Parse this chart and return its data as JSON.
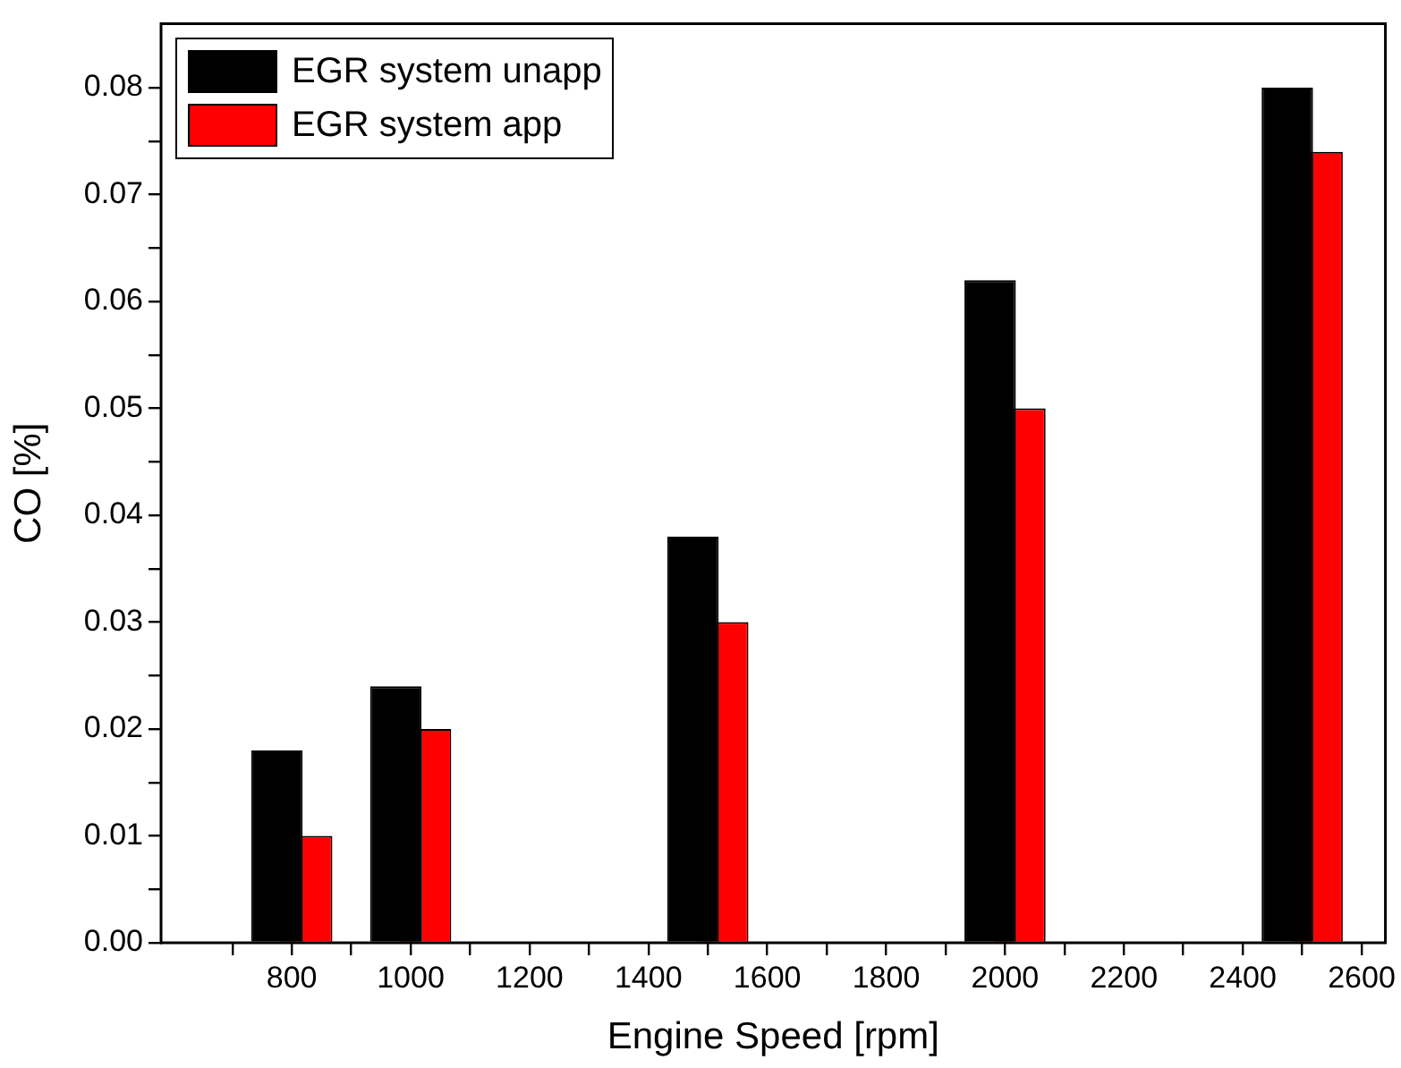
{
  "chart_data": {
    "type": "bar",
    "xlabel": "Engine Speed [rpm]",
    "ylabel": "CO [%]",
    "x": [
      800,
      1000,
      1500,
      2000,
      2500
    ],
    "series": [
      {
        "name": "EGR system unapp",
        "color": "#000000",
        "values": [
          0.018,
          0.024,
          0.038,
          0.062,
          0.08
        ]
      },
      {
        "name": "EGR system app",
        "color": "#ff0000",
        "values": [
          0.01,
          0.02,
          0.03,
          0.05,
          0.074
        ]
      }
    ],
    "xlim": [
      580,
      2640
    ],
    "xticks": [
      {
        "value": 700,
        "label": null
      },
      800,
      {
        "value": 900,
        "label": null
      },
      1000,
      {
        "value": 1100,
        "label": null
      },
      1200,
      {
        "value": 1300,
        "label": null
      },
      1400,
      {
        "value": 1500,
        "label": null
      },
      1600,
      {
        "value": 1700,
        "label": null
      },
      1800,
      {
        "value": 1900,
        "label": null
      },
      2000,
      {
        "value": 2100,
        "label": null
      },
      2200,
      {
        "value": 2300,
        "label": null
      },
      2400,
      {
        "value": 2500,
        "label": null
      },
      2600
    ],
    "ylim": [
      0,
      0.086
    ],
    "yticks": [
      {
        "value": 0,
        "label": "0.00"
      },
      {
        "value": 0.005,
        "label": null
      },
      {
        "value": 0.01,
        "label": "0.01"
      },
      {
        "value": 0.015,
        "label": null
      },
      {
        "value": 0.02,
        "label": "0.02"
      },
      {
        "value": 0.025,
        "label": null
      },
      {
        "value": 0.03,
        "label": "0.03"
      },
      {
        "value": 0.035,
        "label": null
      },
      {
        "value": 0.04,
        "label": "0.04"
      },
      {
        "value": 0.045,
        "label": null
      },
      {
        "value": 0.05,
        "label": "0.05"
      },
      {
        "value": 0.055,
        "label": null
      },
      {
        "value": 0.06,
        "label": "0.06"
      },
      {
        "value": 0.065,
        "label": null
      },
      {
        "value": 0.07,
        "label": "0.07"
      },
      {
        "value": 0.075,
        "label": null
      },
      {
        "value": 0.08,
        "label": "0.08"
      }
    ],
    "grid": false,
    "legend": "top left"
  }
}
